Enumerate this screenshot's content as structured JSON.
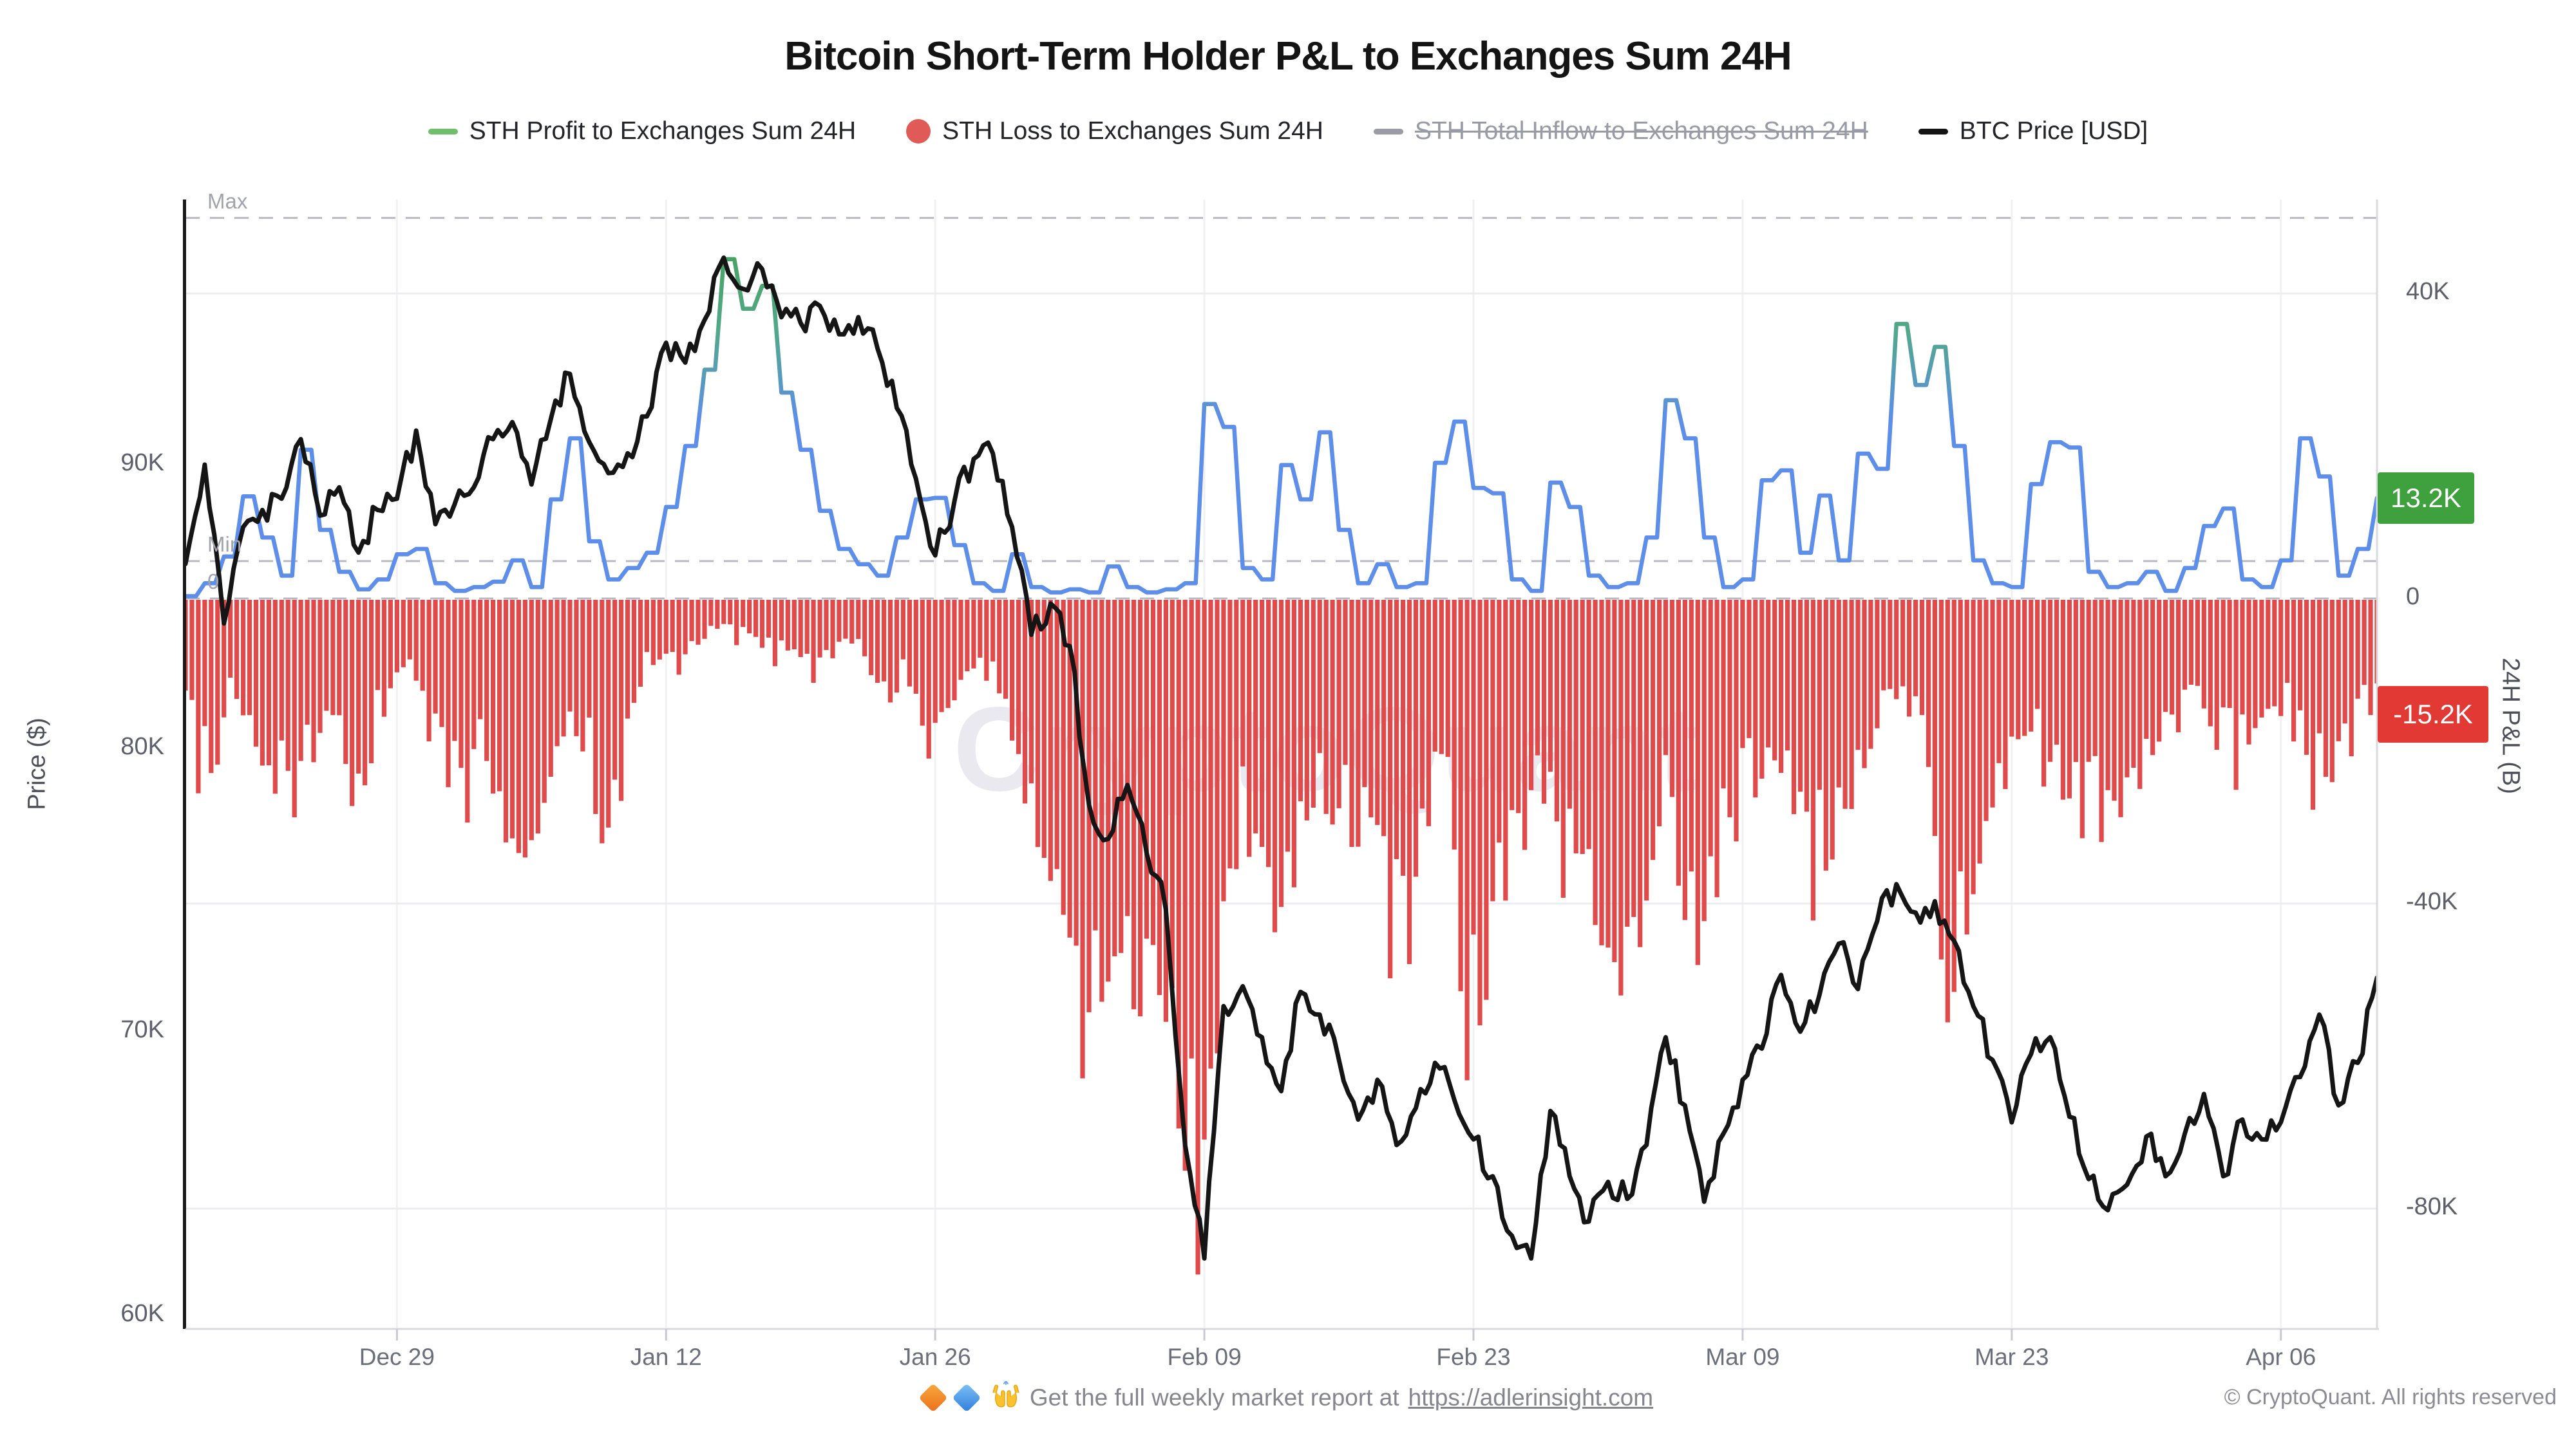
{
  "header": {
    "title": "Bitcoin Short-Term Holder P&L to Exchanges Sum 24H"
  },
  "legend": {
    "items": [
      {
        "label": "STH Profit to Exchanges Sum 24H",
        "marker": "line",
        "color": "#6fbf6a",
        "disabled": false
      },
      {
        "label": "STH Loss to Exchanges Sum 24H",
        "marker": "circle",
        "color": "#e05a57",
        "disabled": false
      },
      {
        "label": "STH Total Inflow to Exchanges Sum 24H",
        "marker": "line",
        "color": "#9a9ba6",
        "disabled": true
      },
      {
        "label": "BTC Price [USD]",
        "marker": "line",
        "color": "#141414",
        "disabled": false
      }
    ]
  },
  "axes": {
    "left": {
      "label": "Price ($)",
      "ticks": [
        {
          "label": "90K",
          "value": 90
        },
        {
          "label": "80K",
          "value": 80
        },
        {
          "label": "70K",
          "value": 70
        },
        {
          "label": "60K",
          "value": 60
        }
      ]
    },
    "right": {
      "label": "24H P&L (B)",
      "ticks": [
        {
          "label": "40K",
          "value": 40
        },
        {
          "label": "0",
          "value": 0
        },
        {
          "label": "-40K",
          "value": -40
        },
        {
          "label": "-80K",
          "value": -80
        }
      ]
    },
    "x": {
      "ticks": [
        {
          "label": "Dec 29",
          "day": 11
        },
        {
          "label": "Jan 12",
          "day": 25
        },
        {
          "label": "Jan 26",
          "day": 39
        },
        {
          "label": "Feb 09",
          "day": 53
        },
        {
          "label": "Feb 23",
          "day": 67
        },
        {
          "label": "Mar 09",
          "day": 81
        },
        {
          "label": "Mar 23",
          "day": 95
        },
        {
          "label": "Apr 06",
          "day": 109
        }
      ]
    }
  },
  "overlays": {
    "max_label": "Max",
    "min_label": "Min",
    "zero_label": "0",
    "max_value": 49.9,
    "min_value": 4.9,
    "zero_value": 0
  },
  "badges": {
    "profit": {
      "text": "13.2K",
      "color": "#3ea13e",
      "value": 13.2
    },
    "loss": {
      "text": "-15.2K",
      "color": "#e23935",
      "value": -15.2
    }
  },
  "watermark": "CryptoQuant",
  "footer": {
    "message": "Get the full weekly market report at",
    "link_text": "https://adlerinsight.com",
    "copyright": "© CryptoQuant. All rights reserved"
  },
  "chart_data": {
    "type": "mixed",
    "description": "Dual-axis chart. x = days, day 0 = Dec 18, day 114 = Apr 11. Left axis: BTC price in K$. Right axis: 24H P&L in K BTC.",
    "x_ticks": [
      "Dec 29",
      "Jan 12",
      "Jan 26",
      "Feb 09",
      "Feb 23",
      "Mar 09",
      "Mar 23",
      "Apr 06"
    ],
    "ylim_left": [
      60,
      99.4
    ],
    "ylim_right": [
      -96,
      52.3
    ],
    "grid": "horizontal at right-axis ticks, faint vertical at date ticks, dashed reference lines Max/Min/0",
    "legend_position": "top center",
    "series": [
      {
        "name": "BTC Price [USD]",
        "type": "line",
        "axis": "left",
        "color": "#141414",
        "values": [
          86.5,
          90.0,
          84.4,
          87.8,
          88.4,
          88.8,
          90.9,
          88.2,
          89.2,
          86.9,
          88.4,
          88.8,
          91.2,
          87.9,
          88.6,
          89.2,
          90.9,
          91.5,
          89.3,
          91.6,
          93.2,
          90.8,
          89.7,
          90.4,
          91.7,
          94.3,
          93.6,
          95.1,
          97.3,
          96.2,
          96.9,
          95.2,
          95.0,
          95.6,
          94.6,
          95.2,
          94.1,
          92.0,
          89.5,
          86.8,
          88.7,
          90.2,
          90.4,
          87.8,
          84.0,
          85.1,
          83.6,
          78.0,
          76.8,
          78.7,
          76.3,
          74.3,
          66.0,
          62.0,
          70.9,
          71.6,
          69.8,
          67.9,
          71.4,
          70.6,
          69.0,
          66.9,
          68.3,
          66.0,
          67.3,
          68.9,
          67.6,
          66.2,
          64.9,
          62.8,
          62.0,
          67.2,
          64.9,
          63.3,
          64.7,
          64.1,
          66.0,
          69.8,
          67.4,
          64.0,
          66.4,
          68.3,
          69.4,
          72.0,
          70.0,
          71.3,
          73.1,
          71.5,
          73.9,
          75.2,
          74.2,
          74.6,
          73.2,
          70.9,
          69.0,
          66.8,
          69.2,
          69.8,
          67.0,
          64.8,
          63.7,
          64.6,
          66.3,
          64.9,
          66.4,
          67.8,
          64.9,
          66.9,
          66.2,
          66.8,
          68.4,
          70.6,
          67.4,
          68.9,
          71.9
        ]
      },
      {
        "name": "STH Profit to Exchanges Sum 24H",
        "type": "line",
        "axis": "right",
        "color": "gradient blue #5d8ee9 (low) to green #45a04f (high)",
        "values": [
          0.3,
          2.0,
          5.5,
          13.4,
          8.0,
          3.0,
          19.5,
          9.0,
          3.5,
          1.2,
          2.5,
          5.8,
          6.5,
          2.0,
          1.0,
          1.5,
          2.2,
          5.0,
          1.5,
          13.0,
          21.0,
          7.5,
          2.5,
          4.0,
          6.0,
          12.0,
          20.0,
          30.0,
          44.5,
          38.0,
          41.0,
          27.0,
          19.5,
          11.5,
          6.5,
          4.5,
          3.0,
          8.0,
          13.0,
          13.2,
          7.0,
          2.0,
          1.0,
          5.8,
          1.5,
          0.8,
          1.2,
          0.8,
          4.2,
          1.5,
          0.8,
          1.2,
          2.0,
          25.5,
          22.5,
          4.0,
          2.5,
          17.5,
          13.0,
          21.8,
          9.0,
          2.0,
          4.5,
          1.5,
          2.0,
          17.8,
          23.2,
          14.5,
          13.8,
          2.5,
          1.0,
          15.2,
          12.0,
          3.0,
          1.5,
          2.0,
          8.0,
          26.0,
          21.0,
          8.0,
          1.5,
          2.5,
          15.5,
          16.8,
          6.0,
          13.5,
          5.0,
          19.0,
          17.0,
          36.0,
          28.0,
          33.0,
          20.0,
          5.0,
          2.0,
          1.5,
          15.0,
          20.5,
          19.8,
          3.5,
          1.5,
          2.0,
          3.5,
          1.0,
          4.0,
          9.5,
          11.8,
          2.5,
          1.5,
          5.0,
          21.0,
          16.0,
          3.0,
          6.5,
          13.2
        ]
      },
      {
        "name": "STH Loss to Exchanges Sum 24H",
        "type": "bar",
        "axis": "right",
        "color": "#e04a4a",
        "values": [
          -12,
          -26,
          -23,
          -14,
          -20,
          -27,
          -30,
          -22,
          -16,
          -29,
          -23,
          -12,
          -8,
          -20,
          -26,
          -30,
          -22,
          -33,
          -36,
          -28,
          -18,
          -20,
          -34,
          -27,
          -12,
          -8,
          -10,
          -6,
          -4,
          -6,
          -5,
          -9,
          -7,
          -11,
          -8,
          -6,
          -10,
          -14,
          -12,
          -22,
          -15,
          -10,
          -11,
          -14,
          -28,
          -35,
          -42,
          -64,
          -55,
          -48,
          -58,
          -52,
          -75,
          -95,
          -60,
          -38,
          -33,
          -46,
          -38,
          -28,
          -32,
          -35,
          -30,
          -53,
          -48,
          -30,
          -22,
          -67,
          -55,
          -42,
          -35,
          -28,
          -40,
          -35,
          -48,
          -52,
          -46,
          -30,
          -38,
          -50,
          -40,
          -34,
          -28,
          -22,
          -30,
          -43,
          -36,
          -28,
          -20,
          -12,
          -16,
          -22,
          -60,
          -45,
          -30,
          -25,
          -18,
          -25,
          -28,
          -33,
          -34,
          -30,
          -25,
          -20,
          -18,
          -12,
          -20,
          -25,
          -18,
          -14,
          -20,
          -28,
          -25,
          -22,
          -15.2
        ]
      },
      {
        "name": "STH Total Inflow to Exchanges Sum 24H",
        "type": "line",
        "axis": "right",
        "color": "#9a9ba6",
        "hidden": true,
        "values": []
      }
    ],
    "current_values": {
      "profit": 13.2,
      "loss": -15.2
    }
  }
}
